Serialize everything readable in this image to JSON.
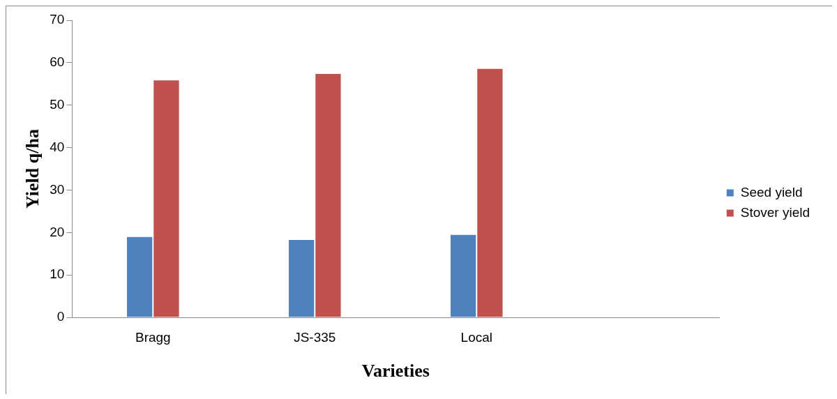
{
  "chart_data": {
    "type": "bar",
    "xlabel": "Varieties",
    "ylabel": "Yield q/ha",
    "categories": [
      "Bragg",
      "JS-335",
      "Local",
      null
    ],
    "series": [
      {
        "name": "Seed yield",
        "color": "#4f81bd",
        "values": [
          19.1,
          18.4,
          19.6,
          null
        ]
      },
      {
        "name": "Stover yield",
        "color": "#c0504d",
        "values": [
          56.0,
          57.5,
          58.7,
          null
        ]
      }
    ],
    "ylim": [
      0,
      70
    ],
    "yticks": [
      0,
      10,
      20,
      30,
      40,
      50,
      60,
      70
    ],
    "grid": false,
    "legend": "right"
  }
}
